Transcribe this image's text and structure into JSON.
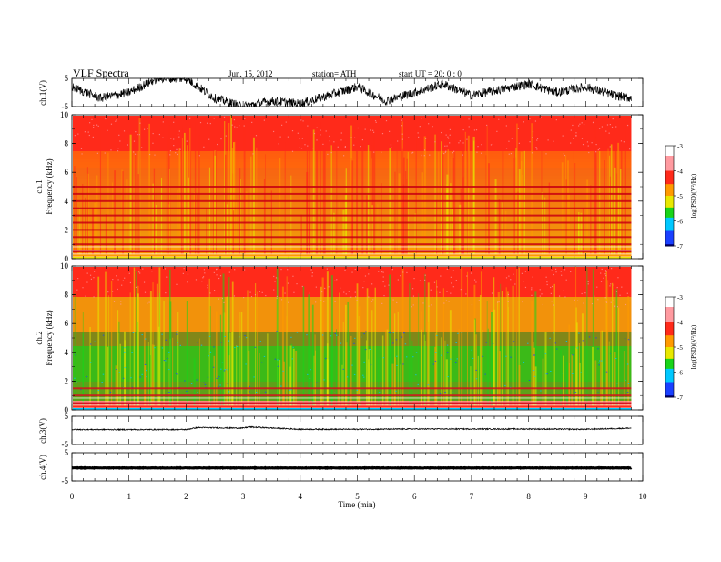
{
  "header": {
    "title": "VLF  Spectra",
    "date": "Jun. 15, 2012",
    "station": "station= ATH",
    "start": "start  UT  =   20: 0  : 0"
  },
  "colors": {
    "red": "#ff2a1a",
    "orange": "#ff9a00",
    "yellow": "#e8e800",
    "green": "#19d419",
    "cyan": "#00c8ff",
    "blue": "#1a40ff",
    "darkblue": "#000080",
    "pink": "#ff9aa0",
    "trace": "#000000"
  },
  "chart_data": [
    {
      "id": "ch1_waveform",
      "type": "line",
      "ylabel": "ch.1(V)",
      "ylim": [
        -5,
        5
      ],
      "yticks": [
        "5",
        "-5"
      ],
      "series": [
        {
          "x": [
            0,
            0.5,
            1,
            1.5,
            2,
            2.5,
            3,
            3.5,
            4,
            4.5,
            5,
            5.5,
            6,
            6.5,
            7,
            7.5,
            8,
            8.5,
            9,
            9.5,
            9.8
          ],
          "y": [
            2,
            -2,
            0,
            5,
            5,
            -2,
            -5,
            -3,
            -4,
            -1,
            2,
            -3,
            0,
            3,
            -1,
            1,
            3,
            0,
            2,
            -1,
            -2
          ]
        }
      ]
    },
    {
      "id": "ch1_spectrogram",
      "type": "heatmap",
      "ylabel": "ch.1\nFrequency  (kHz)",
      "ylim": [
        0,
        10
      ],
      "yticks": [
        "10",
        "8",
        "6",
        "4",
        "2",
        "0"
      ],
      "colorbar": {
        "label": "log(PSD)(V²/Hz)",
        "range": [
          -7,
          -3
        ],
        "ticks": [
          "-3",
          "-4",
          "-5",
          "-6",
          "-7"
        ]
      },
      "bands_kHz": [
        0.5,
        1.0,
        1.5,
        2.0,
        2.5,
        3.0,
        3.5,
        4.0,
        4.5,
        5.0
      ]
    },
    {
      "id": "ch2_spectrogram",
      "type": "heatmap",
      "ylabel": "ch.2\nFrequency  (kHz)",
      "ylim": [
        0,
        10
      ],
      "yticks": [
        "10",
        "8",
        "6",
        "4",
        "2",
        "0"
      ],
      "colorbar": {
        "label": "log(PSD)(V²/Hz)",
        "range": [
          -7,
          -3
        ],
        "ticks": [
          "-3",
          "-4",
          "-5",
          "-6",
          "-7"
        ]
      },
      "bands_kHz": [
        0.5,
        1.0,
        1.5
      ]
    },
    {
      "id": "ch3_waveform",
      "type": "line",
      "ylabel": "ch.3(V)",
      "ylim": [
        -5,
        5
      ],
      "yticks": [
        "5",
        "-5"
      ],
      "series": [
        {
          "x": [
            0,
            2,
            2.2,
            3,
            3.1,
            4,
            5,
            6,
            7,
            8,
            9,
            9.8
          ],
          "y": [
            0.3,
            0.3,
            1.0,
            0.8,
            1.2,
            0.4,
            0.4,
            0.5,
            0.5,
            0.5,
            0.4,
            0.8
          ]
        }
      ]
    },
    {
      "id": "ch4_waveform",
      "type": "line",
      "ylabel": "ch.4(V)",
      "ylim": [
        -5,
        5
      ],
      "yticks": [
        "5",
        "-5"
      ],
      "series": [
        {
          "x": [
            0,
            9.8
          ],
          "y": [
            -0.4,
            -0.4
          ]
        }
      ]
    }
  ],
  "xaxis": {
    "xlabel": "Time  (min)",
    "xlim": [
      0,
      10
    ],
    "xticks": [
      "0",
      "1",
      "2",
      "3",
      "4",
      "5",
      "6",
      "7",
      "8",
      "9",
      "10"
    ]
  }
}
